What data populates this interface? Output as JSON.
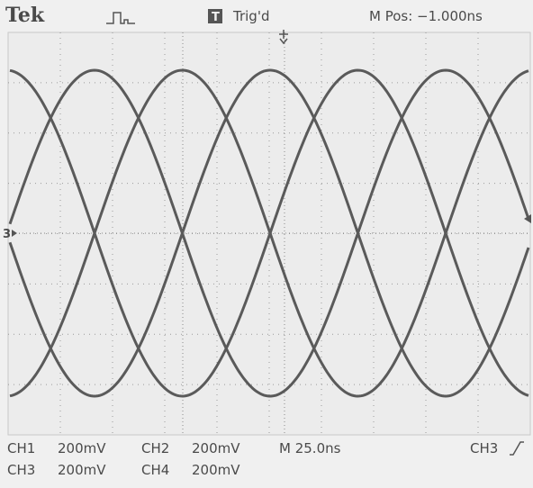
{
  "header": {
    "brand": "Tek",
    "trigger_status": "Trig'd",
    "position": "M Pos: −1.000ns"
  },
  "ground_marker": "3",
  "readouts": {
    "rows": [
      [
        {
          "channel": "CH1",
          "scale": "200mV"
        },
        {
          "channel": "CH2",
          "scale": "200mV"
        }
      ],
      [
        {
          "channel": "CH3",
          "scale": "200mV"
        },
        {
          "channel": "CH4",
          "scale": "200mV"
        }
      ]
    ],
    "timebase": "M 25.0ns",
    "trigger_source": "CH3"
  }
}
